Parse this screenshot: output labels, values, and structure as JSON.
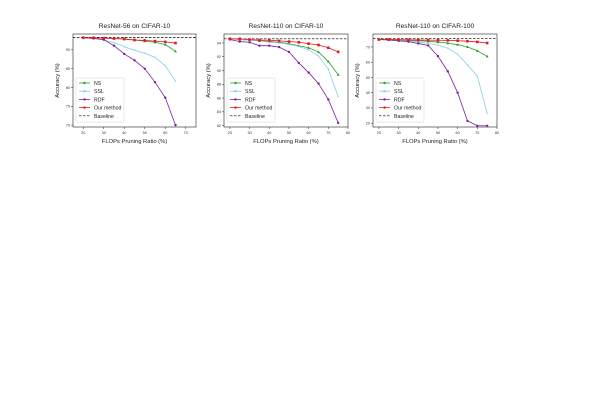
{
  "chart_data": [
    {
      "type": "line",
      "title": "ResNet-56 on CIFAR-10",
      "xlabel": "FLOPs Pruning Ratio (%)",
      "ylabel": "Accuracy (%)",
      "xlim": [
        15,
        75
      ],
      "ylim": [
        69.5,
        94.2
      ],
      "xticks": [
        20,
        30,
        40,
        50,
        60,
        70
      ],
      "yticks": [
        70,
        75,
        80,
        85,
        90
      ],
      "grid": false,
      "legend_position": "lower-left",
      "baseline": 93.3,
      "series": [
        {
          "name": "NS",
          "color": "#2ca02c",
          "x": [
            20,
            25,
            30,
            35,
            40,
            45,
            50,
            55,
            60,
            65
          ],
          "y": [
            93.2,
            93.2,
            93.1,
            93.0,
            92.8,
            92.6,
            92.3,
            92.0,
            91.4,
            89.6
          ]
        },
        {
          "name": "SSL",
          "color": "#87ceeb",
          "x": [
            20,
            25,
            30,
            35,
            40,
            45,
            50,
            55,
            60,
            65
          ],
          "y": [
            93.2,
            93.1,
            92.6,
            91.9,
            90.8,
            89.9,
            89.1,
            88.0,
            85.8,
            81.7
          ]
        },
        {
          "name": "RDF",
          "color": "#7b1fa2",
          "x": [
            20,
            25,
            30,
            35,
            40,
            45,
            50,
            55,
            60,
            65
          ],
          "y": [
            93.2,
            93.0,
            92.7,
            91.1,
            88.9,
            87.2,
            85.0,
            81.4,
            77.3,
            70.0
          ]
        },
        {
          "name": "Our method",
          "color": "#e41a1c",
          "x": [
            20,
            25,
            30,
            35,
            40,
            45,
            50,
            55,
            60,
            65
          ],
          "y": [
            93.2,
            93.2,
            93.1,
            93.0,
            92.9,
            92.6,
            92.5,
            92.3,
            92.1,
            91.8
          ]
        },
        {
          "name": "Baseline",
          "dashed": true,
          "color": "#000000"
        }
      ]
    },
    {
      "type": "line",
      "title": "ResNet-110 on CIFAR-10",
      "xlabel": "FLOPs Pruning Ratio (%)",
      "ylabel": "Accuracy (%)",
      "xlim": [
        17,
        80
      ],
      "ylim": [
        81.8,
        95.3
      ],
      "xticks": [
        20,
        30,
        40,
        50,
        60,
        70,
        80
      ],
      "yticks": [
        82,
        84,
        86,
        88,
        90,
        92,
        94
      ],
      "grid": false,
      "legend_position": "lower-left",
      "baseline": 94.6,
      "series": [
        {
          "name": "NS",
          "color": "#2ca02c",
          "x": [
            20,
            25,
            30,
            35,
            40,
            45,
            50,
            55,
            60,
            65,
            70,
            75
          ],
          "y": [
            94.6,
            94.5,
            94.4,
            94.3,
            94.2,
            94.1,
            93.9,
            93.6,
            93.3,
            92.7,
            91.3,
            89.4
          ]
        },
        {
          "name": "SSL",
          "color": "#87ceeb",
          "x": [
            20,
            25,
            30,
            35,
            40,
            45,
            50,
            55,
            60,
            65,
            70,
            75
          ],
          "y": [
            94.6,
            94.5,
            94.4,
            94.3,
            94.1,
            94.0,
            93.8,
            93.5,
            93.0,
            92.1,
            90.2,
            86.2
          ]
        },
        {
          "name": "RDF",
          "color": "#7b1fa2",
          "x": [
            20,
            25,
            30,
            35,
            40,
            45,
            50,
            55,
            60,
            65,
            70,
            75
          ],
          "y": [
            94.5,
            94.2,
            94.1,
            93.6,
            93.6,
            93.4,
            92.7,
            91.1,
            89.7,
            88.1,
            85.8,
            82.4
          ]
        },
        {
          "name": "Our method",
          "color": "#e41a1c",
          "x": [
            20,
            25,
            30,
            35,
            40,
            45,
            50,
            55,
            60,
            65,
            70,
            75
          ],
          "y": [
            94.6,
            94.6,
            94.5,
            94.4,
            94.4,
            94.3,
            94.2,
            94.1,
            93.9,
            93.7,
            93.3,
            92.7
          ]
        },
        {
          "name": "Baseline",
          "dashed": true,
          "color": "#000000"
        }
      ]
    },
    {
      "type": "line",
      "title": "ResNet-110 on CIFAR-100",
      "xlabel": "FLOPs Pruning Ratio (%)",
      "ylabel": "Accuracy (%)",
      "xlim": [
        17,
        80
      ],
      "ylim": [
        17.5,
        78.5
      ],
      "xticks": [
        20,
        30,
        40,
        50,
        60,
        70,
        80
      ],
      "yticks": [
        20,
        30,
        40,
        50,
        60,
        70
      ],
      "grid": false,
      "legend_position": "lower-left",
      "baseline": 75.5,
      "series": [
        {
          "name": "NS",
          "color": "#2ca02c",
          "x": [
            20,
            25,
            30,
            35,
            40,
            45,
            50,
            55,
            60,
            65,
            70,
            75
          ],
          "y": [
            74.9,
            74.8,
            74.6,
            74.3,
            74.1,
            73.7,
            73.2,
            72.5,
            71.5,
            70.0,
            67.5,
            63.8
          ]
        },
        {
          "name": "SSL",
          "color": "#87ceeb",
          "x": [
            20,
            25,
            30,
            35,
            40,
            45,
            50,
            55,
            60,
            65,
            70,
            75
          ],
          "y": [
            74.9,
            74.6,
            74.3,
            73.9,
            73.2,
            72.3,
            71.2,
            69.2,
            65.2,
            58.2,
            51.0,
            26.5
          ]
        },
        {
          "name": "RDF",
          "color": "#7b1fa2",
          "x": [
            20,
            25,
            30,
            35,
            40,
            45,
            50,
            55,
            60,
            65,
            70,
            75
          ],
          "y": [
            74.9,
            74.6,
            74.0,
            73.5,
            72.3,
            71.0,
            64.0,
            54.0,
            40.0,
            21.5,
            18.3,
            18.3
          ]
        },
        {
          "name": "Our method",
          "color": "#e41a1c",
          "x": [
            20,
            25,
            30,
            35,
            40,
            45,
            50,
            55,
            60,
            65,
            70,
            75
          ],
          "y": [
            74.9,
            74.9,
            74.8,
            74.7,
            74.6,
            74.5,
            74.4,
            74.3,
            74.1,
            73.8,
            73.3,
            72.6
          ]
        },
        {
          "name": "Baseline",
          "dashed": true,
          "color": "#000000"
        }
      ]
    }
  ]
}
